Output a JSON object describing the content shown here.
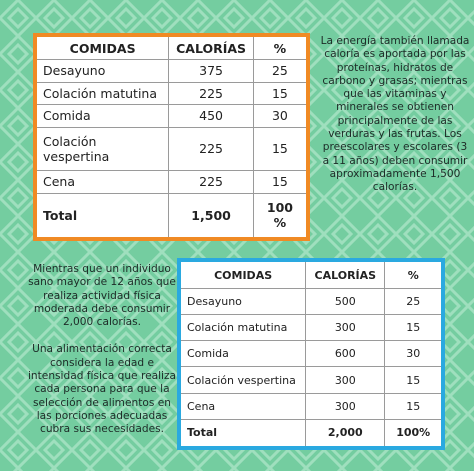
{
  "top_table": {
    "headers": [
      "COMIDAS",
      "CALORÍAS",
      "%"
    ],
    "rows": [
      [
        "Desayuno",
        "375",
        "25"
      ],
      [
        "Colación matutina",
        "225",
        "15"
      ],
      [
        "Comida",
        "450",
        "30"
      ],
      [
        "Colación vespertina",
        "225",
        "15"
      ],
      [
        "Cena",
        "225",
        "15"
      ]
    ],
    "total": [
      "Total",
      "1,500",
      "100 %"
    ]
  },
  "right_text": "La energía también llamada caloría es aportada por las proteínas, hidratos de carbono y grasas; mientras que las vitaminas y minerales se obtienen principalmente de las verduras y las frutas. Los preescolares y escolares (3 a 11 años) deben consumir aproximadamente 1,500 calorías.",
  "left_text": [
    "Mientras que un individuo sano mayor de 12 años que realiza actividad física moderada debe consumir 2,000 calorías.",
    "Una alimentación correcta considera la edad e intensidad física que realiza cada persona para que la selección de alimentos en las porciones adecuadas cubra sus necesidades."
  ],
  "bottom_table": {
    "headers": [
      "COMIDAS",
      "CALORÍAS",
      "%"
    ],
    "rows": [
      [
        "Desayuno",
        "500",
        "25"
      ],
      [
        "Colación matutina",
        "300",
        "15"
      ],
      [
        "Comida",
        "600",
        "30"
      ],
      [
        "Colación vespertina",
        "300",
        "15"
      ],
      [
        "Cena",
        "300",
        "15"
      ]
    ],
    "total": [
      "Total",
      "2,000",
      "100%"
    ]
  }
}
